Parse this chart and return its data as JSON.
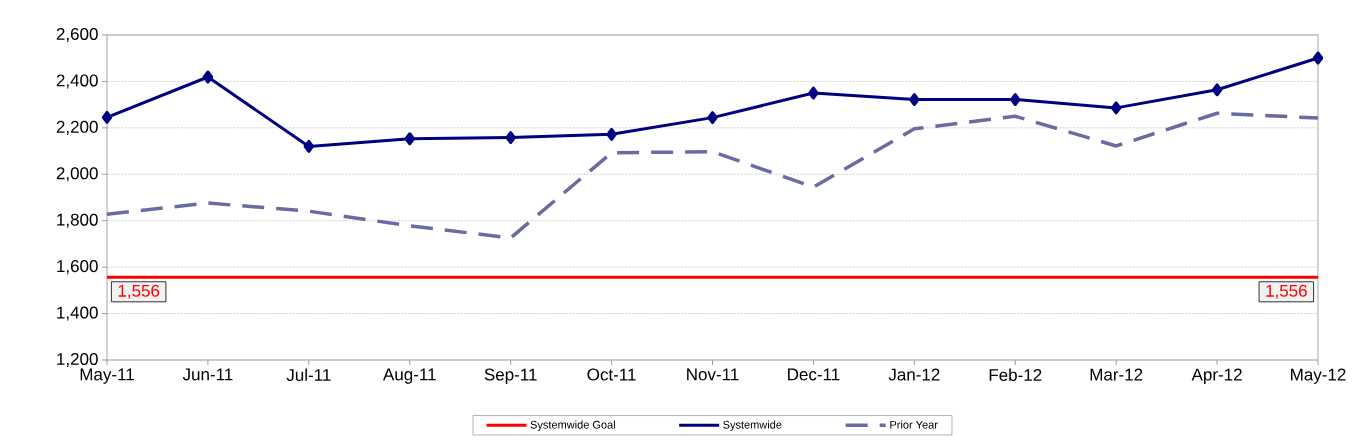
{
  "chart_data": {
    "type": "line",
    "categories": [
      "May-11",
      "Jun-11",
      "Jul-11",
      "Aug-11",
      "Sep-11",
      "Oct-11",
      "Nov-11",
      "Dec-11",
      "Jan-12",
      "Feb-12",
      "Mar-12",
      "Apr-12",
      "May-12"
    ],
    "series": [
      {
        "name": "Systemwide Goal",
        "color": "#ff0000",
        "marker": "none",
        "line_style": "solid",
        "values": [
          1556,
          1556,
          1556,
          1556,
          1556,
          1556,
          1556,
          1556,
          1556,
          1556,
          1556,
          1556,
          1556
        ],
        "value_labels": [
          "1,556",
          null,
          null,
          null,
          null,
          null,
          null,
          null,
          null,
          null,
          null,
          null,
          "1,556"
        ]
      },
      {
        "name": "Systemwide",
        "color": "#000080",
        "marker": "diamond",
        "line_style": "solid",
        "values": [
          2245,
          2419,
          2120,
          2153,
          2158,
          2172,
          2244,
          2350,
          2322,
          2322,
          2286,
          2364,
          2501
        ]
      },
      {
        "name": "Prior Year",
        "color": "#6b6ba3",
        "marker": "none",
        "line_style": "dashed",
        "values": [
          1828,
          1876,
          1841,
          1778,
          1726,
          2093,
          2097,
          1945,
          2196,
          2250,
          2122,
          2263,
          2242
        ]
      }
    ],
    "ylim": [
      1200,
      2600
    ],
    "yticks": [
      {
        "value": 1200,
        "label": "1,200"
      },
      {
        "value": 1400,
        "label": "1,400"
      },
      {
        "value": 1600,
        "label": "1,600"
      },
      {
        "value": 1800,
        "label": "1,800"
      },
      {
        "value": 2000,
        "label": "2,000"
      },
      {
        "value": 2200,
        "label": "2,200"
      },
      {
        "value": 2400,
        "label": "2,400"
      },
      {
        "value": 2600,
        "label": "2,600"
      }
    ],
    "grid": "y",
    "legend": "bottom"
  }
}
